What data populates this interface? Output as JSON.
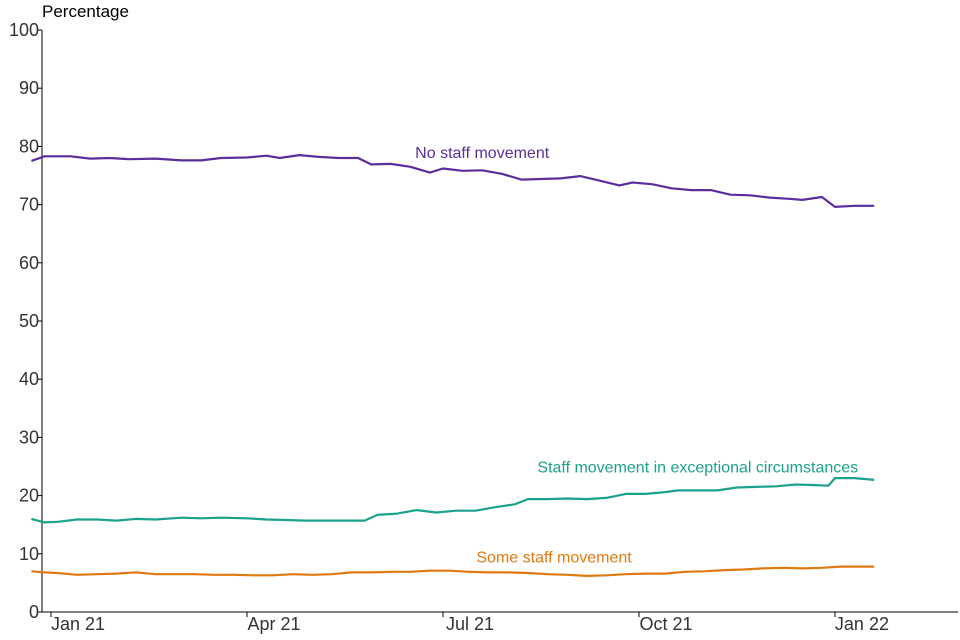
{
  "chart_data": {
    "type": "line",
    "title": "",
    "ylabel": "Percentage",
    "xlabel": "",
    "ylim": [
      0,
      100
    ],
    "y_ticks": [
      0,
      10,
      20,
      30,
      40,
      50,
      60,
      70,
      80,
      90,
      100
    ],
    "x_range": [
      -0.3,
      13.8
    ],
    "x_ticks": [
      {
        "label": "Jan 21",
        "x": 0
      },
      {
        "label": "Apr 21",
        "x": 3
      },
      {
        "label": "Jul 21",
        "x": 6
      },
      {
        "label": "Oct 21",
        "x": 9
      },
      {
        "label": "Jan 22",
        "x": 12
      }
    ],
    "series": [
      {
        "name": "No staff movement",
        "color": "#5b2e9e",
        "label_x": 6.6,
        "label_y": 78,
        "points": [
          [
            -0.3,
            77.5
          ],
          [
            -0.1,
            78.3
          ],
          [
            0.3,
            78.3
          ],
          [
            0.6,
            77.9
          ],
          [
            0.9,
            78.0
          ],
          [
            1.2,
            77.8
          ],
          [
            1.6,
            77.9
          ],
          [
            2.0,
            77.6
          ],
          [
            2.3,
            77.6
          ],
          [
            2.6,
            78.0
          ],
          [
            3.0,
            78.1
          ],
          [
            3.3,
            78.4
          ],
          [
            3.5,
            78.0
          ],
          [
            3.8,
            78.5
          ],
          [
            4.1,
            78.2
          ],
          [
            4.4,
            78.0
          ],
          [
            4.7,
            78.0
          ],
          [
            4.9,
            76.9
          ],
          [
            5.2,
            77.0
          ],
          [
            5.5,
            76.5
          ],
          [
            5.8,
            75.5
          ],
          [
            6.0,
            76.2
          ],
          [
            6.3,
            75.8
          ],
          [
            6.6,
            75.9
          ],
          [
            6.9,
            75.3
          ],
          [
            7.2,
            74.3
          ],
          [
            7.5,
            74.4
          ],
          [
            7.8,
            74.5
          ],
          [
            8.1,
            74.9
          ],
          [
            8.4,
            74.1
          ],
          [
            8.7,
            73.3
          ],
          [
            8.9,
            73.8
          ],
          [
            9.2,
            73.5
          ],
          [
            9.5,
            72.8
          ],
          [
            9.8,
            72.5
          ],
          [
            10.1,
            72.5
          ],
          [
            10.4,
            71.7
          ],
          [
            10.7,
            71.6
          ],
          [
            11.0,
            71.2
          ],
          [
            11.3,
            71.0
          ],
          [
            11.5,
            70.8
          ],
          [
            11.8,
            71.3
          ],
          [
            12.0,
            69.6
          ],
          [
            12.3,
            69.8
          ],
          [
            12.6,
            69.8
          ]
        ]
      },
      {
        "name": "Staff movement in exceptional circumstances",
        "color": "#1ba28c",
        "label_x": 9.9,
        "label_y": 24,
        "points": [
          [
            -0.3,
            16.0
          ],
          [
            -0.1,
            15.4
          ],
          [
            0.1,
            15.5
          ],
          [
            0.4,
            15.9
          ],
          [
            0.7,
            15.9
          ],
          [
            1.0,
            15.7
          ],
          [
            1.3,
            16.0
          ],
          [
            1.6,
            15.9
          ],
          [
            2.0,
            16.2
          ],
          [
            2.3,
            16.1
          ],
          [
            2.6,
            16.2
          ],
          [
            3.0,
            16.1
          ],
          [
            3.3,
            15.9
          ],
          [
            3.6,
            15.8
          ],
          [
            3.9,
            15.7
          ],
          [
            4.2,
            15.7
          ],
          [
            4.5,
            15.7
          ],
          [
            4.8,
            15.7
          ],
          [
            5.0,
            16.7
          ],
          [
            5.3,
            16.9
          ],
          [
            5.6,
            17.5
          ],
          [
            5.9,
            17.1
          ],
          [
            6.2,
            17.4
          ],
          [
            6.5,
            17.4
          ],
          [
            6.8,
            18.0
          ],
          [
            7.1,
            18.5
          ],
          [
            7.3,
            19.4
          ],
          [
            7.6,
            19.4
          ],
          [
            7.9,
            19.5
          ],
          [
            8.2,
            19.4
          ],
          [
            8.5,
            19.6
          ],
          [
            8.8,
            20.3
          ],
          [
            9.1,
            20.3
          ],
          [
            9.4,
            20.6
          ],
          [
            9.6,
            20.9
          ],
          [
            9.9,
            20.9
          ],
          [
            10.2,
            20.9
          ],
          [
            10.5,
            21.4
          ],
          [
            10.8,
            21.5
          ],
          [
            11.1,
            21.6
          ],
          [
            11.4,
            21.9
          ],
          [
            11.7,
            21.8
          ],
          [
            11.9,
            21.7
          ],
          [
            12.0,
            23.0
          ],
          [
            12.3,
            23.0
          ],
          [
            12.6,
            22.7
          ]
        ]
      },
      {
        "name": "Some staff movement",
        "color": "#e07a10",
        "label_x": 7.7,
        "label_y": 8.5,
        "points": [
          [
            -0.3,
            7.0
          ],
          [
            -0.1,
            6.8
          ],
          [
            0.1,
            6.7
          ],
          [
            0.4,
            6.4
          ],
          [
            0.7,
            6.5
          ],
          [
            1.0,
            6.6
          ],
          [
            1.3,
            6.8
          ],
          [
            1.6,
            6.5
          ],
          [
            1.9,
            6.5
          ],
          [
            2.2,
            6.5
          ],
          [
            2.5,
            6.4
          ],
          [
            2.8,
            6.4
          ],
          [
            3.1,
            6.3
          ],
          [
            3.4,
            6.3
          ],
          [
            3.7,
            6.5
          ],
          [
            4.0,
            6.4
          ],
          [
            4.3,
            6.5
          ],
          [
            4.6,
            6.8
          ],
          [
            4.9,
            6.8
          ],
          [
            5.2,
            6.9
          ],
          [
            5.5,
            6.9
          ],
          [
            5.8,
            7.1
          ],
          [
            6.1,
            7.1
          ],
          [
            6.4,
            6.9
          ],
          [
            6.7,
            6.8
          ],
          [
            7.0,
            6.8
          ],
          [
            7.3,
            6.7
          ],
          [
            7.6,
            6.5
          ],
          [
            7.9,
            6.4
          ],
          [
            8.2,
            6.2
          ],
          [
            8.5,
            6.3
          ],
          [
            8.8,
            6.5
          ],
          [
            9.1,
            6.6
          ],
          [
            9.4,
            6.6
          ],
          [
            9.7,
            6.9
          ],
          [
            10.0,
            7.0
          ],
          [
            10.3,
            7.2
          ],
          [
            10.6,
            7.3
          ],
          [
            10.9,
            7.5
          ],
          [
            11.2,
            7.6
          ],
          [
            11.5,
            7.5
          ],
          [
            11.8,
            7.6
          ],
          [
            12.1,
            7.8
          ],
          [
            12.4,
            7.8
          ],
          [
            12.6,
            7.8
          ]
        ]
      }
    ]
  }
}
